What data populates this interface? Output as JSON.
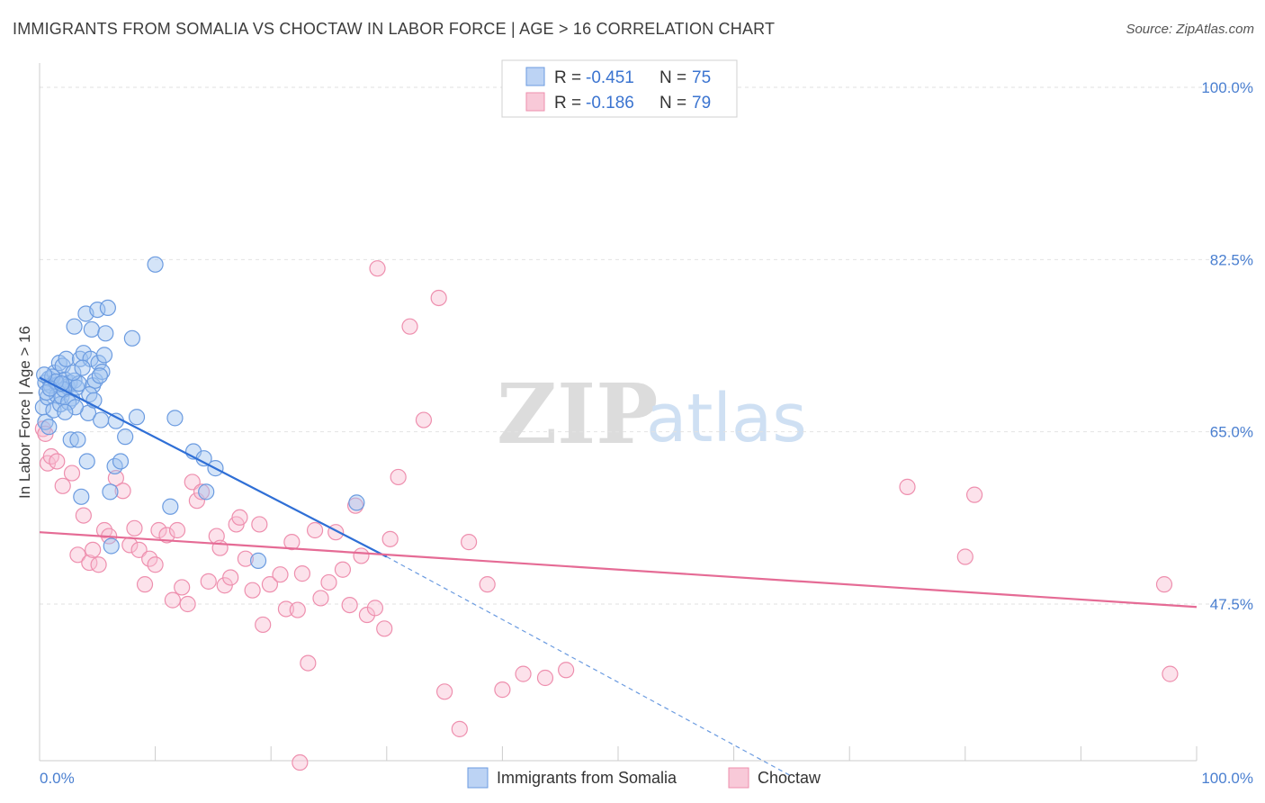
{
  "header": {
    "title": "IMMIGRANTS FROM SOMALIA VS CHOCTAW IN LABOR FORCE | AGE > 16 CORRELATION CHART",
    "source": "Source: ZipAtlas.com"
  },
  "watermark": {
    "zip": "ZIP",
    "atlas": "atlas"
  },
  "legend": {
    "series1": {
      "r_label": "R = ",
      "r_value": "-0.451",
      "n_label": "N = ",
      "n_value": "75",
      "color": "#6b9be0"
    },
    "series2": {
      "r_label": "R = ",
      "r_value": "-0.186",
      "n_label": "N = ",
      "n_value": "79",
      "color": "#ee8fae"
    }
  },
  "chart_data": {
    "type": "scatter",
    "title": "IMMIGRANTS FROM SOMALIA VS CHOCTAW IN LABOR FORCE | AGE > 16 CORRELATION CHART",
    "xlabel": "",
    "ylabel": "In Labor Force | Age > 16",
    "xlim": [
      0,
      100
    ],
    "ylim": [
      30,
      102
    ],
    "x_tick_labels": {
      "min": "0.0%",
      "max": "100.0%"
    },
    "y_ticks": [
      {
        "value": 100,
        "label": "100.0%"
      },
      {
        "value": 82.5,
        "label": "82.5%"
      },
      {
        "value": 65,
        "label": "65.0%"
      },
      {
        "value": 47.5,
        "label": "47.5%"
      }
    ],
    "grid": true,
    "series": [
      {
        "name": "Immigrants from Somalia",
        "color": "#6b9be0",
        "r": -0.451,
        "n": 75,
        "trend": {
          "x0": 0,
          "y0": 70.5,
          "x1": 30,
          "y1": 52.3,
          "dash_x1": 65,
          "dash_y1": 30
        },
        "points": [
          [
            0.3,
            67.5
          ],
          [
            0.5,
            66.0
          ],
          [
            0.5,
            70.0
          ],
          [
            0.7,
            68.5
          ],
          [
            0.8,
            70.4
          ],
          [
            1.0,
            69.7
          ],
          [
            1.2,
            67.2
          ],
          [
            1.3,
            71.0
          ],
          [
            1.5,
            68.7
          ],
          [
            1.6,
            69.8
          ],
          [
            1.7,
            72.0
          ],
          [
            1.8,
            67.8
          ],
          [
            1.9,
            68.6
          ],
          [
            2.0,
            71.7
          ],
          [
            2.2,
            70.3
          ],
          [
            2.3,
            72.4
          ],
          [
            2.4,
            69.6
          ],
          [
            2.6,
            70.0
          ],
          [
            2.7,
            64.2
          ],
          [
            2.8,
            68.4
          ],
          [
            3.0,
            75.7
          ],
          [
            3.0,
            70.2
          ],
          [
            3.2,
            69.5
          ],
          [
            3.3,
            64.2
          ],
          [
            3.4,
            69.9
          ],
          [
            3.5,
            72.4
          ],
          [
            3.6,
            58.4
          ],
          [
            3.8,
            73.0
          ],
          [
            4.0,
            77.0
          ],
          [
            4.1,
            62.0
          ],
          [
            4.2,
            66.9
          ],
          [
            4.4,
            72.4
          ],
          [
            4.5,
            75.4
          ],
          [
            4.6,
            69.7
          ],
          [
            4.8,
            70.2
          ],
          [
            5.0,
            77.4
          ],
          [
            5.1,
            72.0
          ],
          [
            5.3,
            66.2
          ],
          [
            5.4,
            71.1
          ],
          [
            5.6,
            72.8
          ],
          [
            5.7,
            75.0
          ],
          [
            5.9,
            77.6
          ],
          [
            6.1,
            58.9
          ],
          [
            6.2,
            53.4
          ],
          [
            6.5,
            61.5
          ],
          [
            7.0,
            62.0
          ],
          [
            7.4,
            64.5
          ],
          [
            8.0,
            74.5
          ],
          [
            8.4,
            66.5
          ],
          [
            10.0,
            82.0
          ],
          [
            11.3,
            57.4
          ],
          [
            11.7,
            66.4
          ],
          [
            13.3,
            63.0
          ],
          [
            14.2,
            62.3
          ],
          [
            14.4,
            58.9
          ],
          [
            15.2,
            61.3
          ],
          [
            18.9,
            51.9
          ],
          [
            27.4,
            57.8
          ],
          [
            0.6,
            69.0
          ],
          [
            1.1,
            70.6
          ],
          [
            2.1,
            69.3
          ],
          [
            2.9,
            71.0
          ],
          [
            3.7,
            71.5
          ],
          [
            4.3,
            68.8
          ],
          [
            5.2,
            70.7
          ],
          [
            1.4,
            70.1
          ],
          [
            2.5,
            68.0
          ],
          [
            0.9,
            69.4
          ],
          [
            3.1,
            67.5
          ],
          [
            4.7,
            68.2
          ],
          [
            1.9,
            69.9
          ],
          [
            2.2,
            67.0
          ],
          [
            0.4,
            70.8
          ],
          [
            6.6,
            66.1
          ],
          [
            0.8,
            65.5
          ]
        ]
      },
      {
        "name": "Choctaw",
        "color": "#ee8fae",
        "r": -0.186,
        "n": 79,
        "trend": {
          "x0": 0,
          "y0": 54.8,
          "x1": 100,
          "y1": 47.2
        },
        "points": [
          [
            0.3,
            65.3
          ],
          [
            0.5,
            64.8
          ],
          [
            0.7,
            61.8
          ],
          [
            1.0,
            62.5
          ],
          [
            1.5,
            62.0
          ],
          [
            2.0,
            59.5
          ],
          [
            2.8,
            60.8
          ],
          [
            3.3,
            52.5
          ],
          [
            3.8,
            56.5
          ],
          [
            4.3,
            51.7
          ],
          [
            4.6,
            53.0
          ],
          [
            5.1,
            51.5
          ],
          [
            5.6,
            55.0
          ],
          [
            6.0,
            54.4
          ],
          [
            6.6,
            60.3
          ],
          [
            7.2,
            59.0
          ],
          [
            7.8,
            53.5
          ],
          [
            8.2,
            55.2
          ],
          [
            8.6,
            53.0
          ],
          [
            9.1,
            49.5
          ],
          [
            9.5,
            52.1
          ],
          [
            10.0,
            51.5
          ],
          [
            10.3,
            55.0
          ],
          [
            11.0,
            54.5
          ],
          [
            11.5,
            47.9
          ],
          [
            11.9,
            55.0
          ],
          [
            12.3,
            49.2
          ],
          [
            12.8,
            47.5
          ],
          [
            13.2,
            59.9
          ],
          [
            13.6,
            58.0
          ],
          [
            14.0,
            58.9
          ],
          [
            14.6,
            49.8
          ],
          [
            15.3,
            54.4
          ],
          [
            15.6,
            53.2
          ],
          [
            16.0,
            49.4
          ],
          [
            16.5,
            50.2
          ],
          [
            17.0,
            55.6
          ],
          [
            17.3,
            56.3
          ],
          [
            17.8,
            52.1
          ],
          [
            18.4,
            48.9
          ],
          [
            19.0,
            55.6
          ],
          [
            19.3,
            45.4
          ],
          [
            19.9,
            49.5
          ],
          [
            20.8,
            50.5
          ],
          [
            21.3,
            47.0
          ],
          [
            21.8,
            53.8
          ],
          [
            22.3,
            46.9
          ],
          [
            22.7,
            50.6
          ],
          [
            23.2,
            41.5
          ],
          [
            23.8,
            55.0
          ],
          [
            24.3,
            48.1
          ],
          [
            25.0,
            49.7
          ],
          [
            25.6,
            54.8
          ],
          [
            26.2,
            51.0
          ],
          [
            26.8,
            47.4
          ],
          [
            27.3,
            57.5
          ],
          [
            27.8,
            52.4
          ],
          [
            28.3,
            46.4
          ],
          [
            29.0,
            47.1
          ],
          [
            29.8,
            45.0
          ],
          [
            30.3,
            54.1
          ],
          [
            31.0,
            60.4
          ],
          [
            32.0,
            75.7
          ],
          [
            33.2,
            66.2
          ],
          [
            34.5,
            78.6
          ],
          [
            35.0,
            38.6
          ],
          [
            36.3,
            34.8
          ],
          [
            37.1,
            53.8
          ],
          [
            38.7,
            49.5
          ],
          [
            40.0,
            38.8
          ],
          [
            41.8,
            40.4
          ],
          [
            43.7,
            40.0
          ],
          [
            45.5,
            40.8
          ],
          [
            22.5,
            31.4
          ],
          [
            29.2,
            81.6
          ],
          [
            75.0,
            59.4
          ],
          [
            80.0,
            52.3
          ],
          [
            80.8,
            58.6
          ],
          [
            97.2,
            49.5
          ],
          [
            97.7,
            40.4
          ]
        ]
      }
    ]
  },
  "bottom_legend": {
    "items": [
      {
        "label": "Immigrants from Somalia",
        "color": "#6b9be0"
      },
      {
        "label": "Choctaw",
        "color": "#ee8fae"
      }
    ]
  }
}
